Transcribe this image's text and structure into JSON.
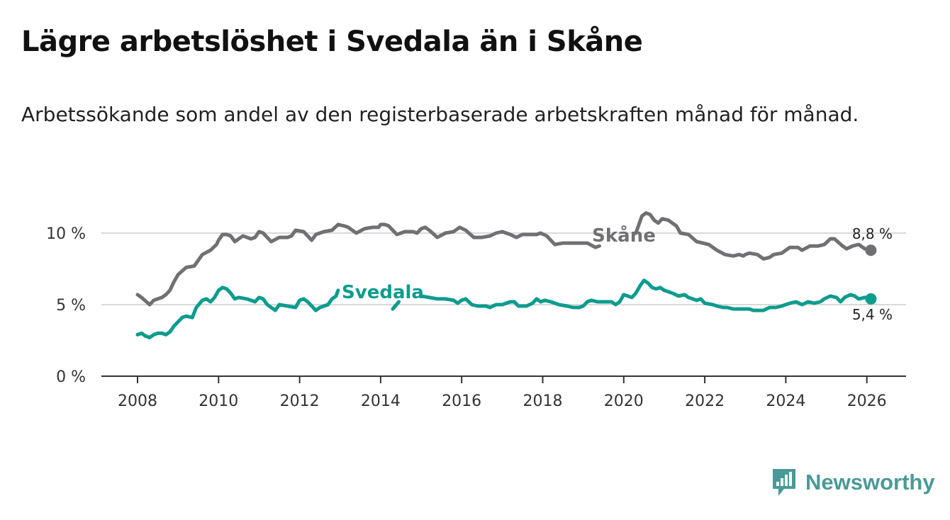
{
  "title": "Lägre arbetslöshet i Svedala än i Skåne",
  "subtitle": "Arbetssökande som andel av den registerbaserade arbetskraften månad för månad.",
  "brand": {
    "name": "Newsworthy",
    "icon": "bar-chart-logo-icon",
    "color": "#4a9a96"
  },
  "chart_data": {
    "type": "line",
    "title": "Lägre arbetslöshet i Svedala än i Skåne",
    "xlabel": "",
    "ylabel": "",
    "xlim": [
      2007.0,
      2027.0
    ],
    "ylim": [
      0,
      10
    ],
    "x_ticks": [
      {
        "value": 2008,
        "label": "2008"
      },
      {
        "value": 2010,
        "label": "2010"
      },
      {
        "value": 2012,
        "label": "2012"
      },
      {
        "value": 2014,
        "label": "2014"
      },
      {
        "value": 2016,
        "label": "2016"
      },
      {
        "value": 2018,
        "label": "2018"
      },
      {
        "value": 2020,
        "label": "2020"
      },
      {
        "value": 2022,
        "label": "2022"
      },
      {
        "value": 2024,
        "label": "2024"
      },
      {
        "value": 2026,
        "label": "2026"
      }
    ],
    "y_ticks": [
      {
        "value": 0,
        "label": "0 %"
      },
      {
        "value": 5,
        "label": "5 %"
      },
      {
        "value": 10,
        "label": "10 %"
      }
    ],
    "grid": true,
    "series": [
      {
        "name": "Skåne",
        "color": "#707074",
        "end_label": "8,8 %",
        "label_position": "above",
        "points": [
          [
            2008.0,
            5.7
          ],
          [
            2008.1,
            5.5
          ],
          [
            2008.3,
            5.0
          ],
          [
            2008.4,
            5.3
          ],
          [
            2008.6,
            5.5
          ],
          [
            2008.7,
            5.7
          ],
          [
            2008.8,
            6.0
          ],
          [
            2008.9,
            6.6
          ],
          [
            2009.0,
            7.1
          ],
          [
            2009.2,
            7.6
          ],
          [
            2009.4,
            7.7
          ],
          [
            2009.6,
            8.5
          ],
          [
            2009.8,
            8.8
          ],
          [
            2009.95,
            9.2
          ],
          [
            2010.0,
            9.5
          ],
          [
            2010.1,
            9.9
          ],
          [
            2010.2,
            9.9
          ],
          [
            2010.3,
            9.8
          ],
          [
            2010.4,
            9.4
          ],
          [
            2010.6,
            9.8
          ],
          [
            2010.8,
            9.6
          ],
          [
            2010.9,
            9.7
          ],
          [
            2011.0,
            10.1
          ],
          [
            2011.1,
            10.0
          ],
          [
            2011.3,
            9.4
          ],
          [
            2011.5,
            9.7
          ],
          [
            2011.7,
            9.7
          ],
          [
            2011.8,
            9.8
          ],
          [
            2011.9,
            10.2
          ],
          [
            2012.1,
            10.1
          ],
          [
            2012.3,
            9.5
          ],
          [
            2012.4,
            9.9
          ],
          [
            2012.6,
            10.1
          ],
          [
            2012.8,
            10.2
          ],
          [
            2012.95,
            10.6
          ],
          [
            2013.1,
            10.5
          ],
          [
            2013.2,
            10.4
          ],
          [
            2013.4,
            10.0
          ],
          [
            2013.6,
            10.3
          ],
          [
            2013.8,
            10.4
          ],
          [
            2013.95,
            10.4
          ],
          [
            2014.0,
            10.6
          ],
          [
            2014.1,
            10.6
          ],
          [
            2014.2,
            10.5
          ],
          [
            2014.3,
            10.2
          ],
          [
            2014.4,
            9.9
          ],
          [
            2014.6,
            10.1
          ],
          [
            2014.8,
            10.1
          ],
          [
            2014.9,
            10.0
          ],
          [
            2015.0,
            10.3
          ],
          [
            2015.1,
            10.4
          ],
          [
            2015.2,
            10.2
          ],
          [
            2015.4,
            9.7
          ],
          [
            2015.6,
            10.0
          ],
          [
            2015.8,
            10.1
          ],
          [
            2015.95,
            10.4
          ],
          [
            2016.1,
            10.2
          ],
          [
            2016.3,
            9.7
          ],
          [
            2016.5,
            9.7
          ],
          [
            2016.7,
            9.8
          ],
          [
            2016.85,
            10.0
          ],
          [
            2017.0,
            10.1
          ],
          [
            2017.2,
            9.9
          ],
          [
            2017.35,
            9.7
          ],
          [
            2017.5,
            9.9
          ],
          [
            2017.7,
            9.9
          ],
          [
            2017.85,
            9.9
          ],
          [
            2017.95,
            10.0
          ],
          [
            2018.1,
            9.8
          ],
          [
            2018.3,
            9.2
          ],
          [
            2018.5,
            9.3
          ],
          [
            2018.7,
            9.3
          ],
          [
            2018.9,
            9.3
          ],
          [
            2019.1,
            9.3
          ],
          [
            2019.3,
            9.0
          ],
          [
            2019.4,
            9.1
          ],
          [
            2020.3,
            10.0
          ],
          [
            2020.45,
            11.2
          ],
          [
            2020.55,
            11.4
          ],
          [
            2020.65,
            11.3
          ],
          [
            2020.75,
            10.9
          ],
          [
            2020.85,
            10.7
          ],
          [
            2020.95,
            11.0
          ],
          [
            2021.1,
            10.9
          ],
          [
            2021.3,
            10.5
          ],
          [
            2021.4,
            10.0
          ],
          [
            2021.6,
            9.9
          ],
          [
            2021.8,
            9.4
          ],
          [
            2021.95,
            9.3
          ],
          [
            2022.1,
            9.2
          ],
          [
            2022.3,
            8.8
          ],
          [
            2022.5,
            8.5
          ],
          [
            2022.7,
            8.4
          ],
          [
            2022.85,
            8.5
          ],
          [
            2022.95,
            8.4
          ],
          [
            2023.0,
            8.5
          ],
          [
            2023.1,
            8.6
          ],
          [
            2023.3,
            8.5
          ],
          [
            2023.45,
            8.2
          ],
          [
            2023.6,
            8.3
          ],
          [
            2023.7,
            8.5
          ],
          [
            2023.9,
            8.6
          ],
          [
            2024.0,
            8.8
          ],
          [
            2024.1,
            9.0
          ],
          [
            2024.3,
            9.0
          ],
          [
            2024.4,
            8.8
          ],
          [
            2024.6,
            9.1
          ],
          [
            2024.8,
            9.1
          ],
          [
            2024.95,
            9.2
          ],
          [
            2025.1,
            9.6
          ],
          [
            2025.2,
            9.6
          ],
          [
            2025.4,
            9.1
          ],
          [
            2025.5,
            8.9
          ],
          [
            2025.65,
            9.1
          ],
          [
            2025.8,
            9.2
          ],
          [
            2025.95,
            8.9
          ],
          [
            2026.0,
            8.9
          ],
          [
            2026.1,
            8.8
          ]
        ]
      },
      {
        "name": "Svedala",
        "color": "#0c9c8e",
        "end_label": "5,4 %",
        "label_position": "below",
        "points": [
          [
            2008.0,
            2.9
          ],
          [
            2008.1,
            3.0
          ],
          [
            2008.2,
            2.8
          ],
          [
            2008.3,
            2.7
          ],
          [
            2008.4,
            2.9
          ],
          [
            2008.5,
            3.0
          ],
          [
            2008.6,
            3.0
          ],
          [
            2008.7,
            2.9
          ],
          [
            2008.8,
            3.1
          ],
          [
            2008.9,
            3.5
          ],
          [
            2009.0,
            3.8
          ],
          [
            2009.1,
            4.1
          ],
          [
            2009.2,
            4.2
          ],
          [
            2009.35,
            4.1
          ],
          [
            2009.45,
            4.8
          ],
          [
            2009.6,
            5.3
          ],
          [
            2009.7,
            5.4
          ],
          [
            2009.8,
            5.2
          ],
          [
            2009.9,
            5.5
          ],
          [
            2010.0,
            6.0
          ],
          [
            2010.1,
            6.2
          ],
          [
            2010.2,
            6.1
          ],
          [
            2010.3,
            5.8
          ],
          [
            2010.4,
            5.4
          ],
          [
            2010.5,
            5.5
          ],
          [
            2010.7,
            5.4
          ],
          [
            2010.9,
            5.2
          ],
          [
            2011.0,
            5.5
          ],
          [
            2011.1,
            5.4
          ],
          [
            2011.2,
            5.0
          ],
          [
            2011.3,
            4.8
          ],
          [
            2011.4,
            4.6
          ],
          [
            2011.5,
            5.0
          ],
          [
            2011.7,
            4.9
          ],
          [
            2011.9,
            4.8
          ],
          [
            2012.0,
            5.3
          ],
          [
            2012.1,
            5.4
          ],
          [
            2012.2,
            5.2
          ],
          [
            2012.3,
            4.9
          ],
          [
            2012.4,
            4.6
          ],
          [
            2012.5,
            4.8
          ],
          [
            2012.7,
            5.0
          ],
          [
            2012.8,
            5.4
          ],
          [
            2012.9,
            5.6
          ],
          [
            2012.95,
            6.0
          ],
          [
            2014.3,
            4.7
          ],
          [
            2014.45,
            5.2
          ],
          [
            2015.0,
            5.6
          ],
          [
            2015.2,
            5.5
          ],
          [
            2015.4,
            5.4
          ],
          [
            2015.6,
            5.4
          ],
          [
            2015.8,
            5.3
          ],
          [
            2015.9,
            5.1
          ],
          [
            2016.0,
            5.3
          ],
          [
            2016.1,
            5.4
          ],
          [
            2016.25,
            5.0
          ],
          [
            2016.4,
            4.9
          ],
          [
            2016.6,
            4.9
          ],
          [
            2016.7,
            4.8
          ],
          [
            2016.85,
            5.0
          ],
          [
            2017.0,
            5.0
          ],
          [
            2017.1,
            5.1
          ],
          [
            2017.2,
            5.2
          ],
          [
            2017.3,
            5.2
          ],
          [
            2017.4,
            4.9
          ],
          [
            2017.6,
            4.9
          ],
          [
            2017.75,
            5.1
          ],
          [
            2017.85,
            5.4
          ],
          [
            2017.95,
            5.2
          ],
          [
            2018.05,
            5.3
          ],
          [
            2018.2,
            5.2
          ],
          [
            2018.3,
            5.1
          ],
          [
            2018.4,
            5.0
          ],
          [
            2018.6,
            4.9
          ],
          [
            2018.75,
            4.8
          ],
          [
            2018.9,
            4.8
          ],
          [
            2019.0,
            4.9
          ],
          [
            2019.1,
            5.2
          ],
          [
            2019.2,
            5.3
          ],
          [
            2019.35,
            5.2
          ],
          [
            2019.5,
            5.2
          ],
          [
            2019.7,
            5.2
          ],
          [
            2019.8,
            5.0
          ],
          [
            2019.9,
            5.2
          ],
          [
            2020.0,
            5.7
          ],
          [
            2020.1,
            5.6
          ],
          [
            2020.2,
            5.5
          ],
          [
            2020.3,
            5.8
          ],
          [
            2020.4,
            6.3
          ],
          [
            2020.5,
            6.7
          ],
          [
            2020.6,
            6.5
          ],
          [
            2020.7,
            6.2
          ],
          [
            2020.8,
            6.1
          ],
          [
            2020.9,
            6.2
          ],
          [
            2021.0,
            6.0
          ],
          [
            2021.1,
            5.9
          ],
          [
            2021.2,
            5.8
          ],
          [
            2021.35,
            5.6
          ],
          [
            2021.5,
            5.7
          ],
          [
            2021.6,
            5.5
          ],
          [
            2021.8,
            5.3
          ],
          [
            2021.9,
            5.4
          ],
          [
            2022.0,
            5.1
          ],
          [
            2022.2,
            5.0
          ],
          [
            2022.3,
            4.9
          ],
          [
            2022.45,
            4.8
          ],
          [
            2022.55,
            4.8
          ],
          [
            2022.7,
            4.7
          ],
          [
            2022.85,
            4.7
          ],
          [
            2023.0,
            4.7
          ],
          [
            2023.1,
            4.7
          ],
          [
            2023.2,
            4.6
          ],
          [
            2023.3,
            4.6
          ],
          [
            2023.45,
            4.6
          ],
          [
            2023.6,
            4.8
          ],
          [
            2023.75,
            4.8
          ],
          [
            2023.9,
            4.9
          ],
          [
            2024.0,
            5.0
          ],
          [
            2024.1,
            5.1
          ],
          [
            2024.25,
            5.2
          ],
          [
            2024.4,
            5.0
          ],
          [
            2024.55,
            5.2
          ],
          [
            2024.7,
            5.1
          ],
          [
            2024.85,
            5.2
          ],
          [
            2024.95,
            5.4
          ],
          [
            2025.1,
            5.6
          ],
          [
            2025.25,
            5.5
          ],
          [
            2025.35,
            5.2
          ],
          [
            2025.45,
            5.5
          ],
          [
            2025.6,
            5.7
          ],
          [
            2025.7,
            5.6
          ],
          [
            2025.8,
            5.4
          ],
          [
            2025.95,
            5.5
          ],
          [
            2026.05,
            5.5
          ],
          [
            2026.1,
            5.4
          ]
        ]
      }
    ]
  }
}
